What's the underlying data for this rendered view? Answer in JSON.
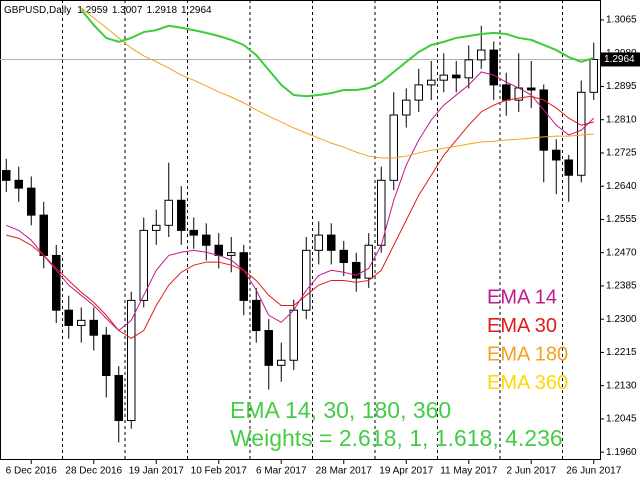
{
  "chart_data": {
    "type": "candlestick",
    "symbol": "GBPUSD,Daily",
    "ohlc": [
      1.2959,
      1.3007,
      1.2918,
      1.2964
    ],
    "price_line": 1.2964,
    "categories": [
      null,
      null,
      "6 Dec 2016",
      null,
      null,
      null,
      null,
      "28 Dec 2016",
      null,
      null,
      null,
      null,
      "19 Jan 2017",
      null,
      null,
      null,
      null,
      "10 Feb 2017",
      null,
      null,
      null,
      null,
      "6 Mar 2017",
      null,
      null,
      null,
      null,
      "28 Mar 2017",
      null,
      null,
      null,
      null,
      "19 Apr 2017",
      null,
      null,
      null,
      null,
      "11 May 2017",
      null,
      null,
      null,
      null,
      "2 Jun 2017",
      null,
      null,
      null,
      null,
      "26 Jun 2017"
    ],
    "candles": {
      "open": [
        1.268,
        1.2655,
        1.2635,
        1.2566,
        1.2463,
        1.2323,
        1.2284,
        1.2297,
        1.2259,
        1.2156,
        1.2041,
        1.2348,
        1.2527,
        1.254,
        1.2604,
        1.2527,
        1.2515,
        1.2489,
        1.2463,
        1.247,
        1.2348,
        1.2271,
        1.2182,
        1.2195,
        1.2323,
        1.2476,
        1.2515,
        1.2476,
        1.2445,
        1.2405,
        1.2489,
        1.2655,
        1.2822,
        1.286,
        1.2899,
        1.2911,
        1.2924,
        1.2917,
        1.2963,
        1.2988,
        1.2899,
        1.286,
        1.2891,
        1.2886,
        1.2732,
        1.2707,
        1.2668,
        1.288
      ],
      "high": [
        1.271,
        1.269,
        1.2665,
        1.26,
        1.249,
        1.236,
        1.233,
        1.233,
        1.228,
        1.218,
        1.237,
        1.256,
        1.258,
        1.27,
        1.264,
        1.256,
        1.2545,
        1.252,
        1.251,
        1.249,
        1.238,
        1.23,
        1.224,
        1.235,
        1.251,
        1.255,
        1.2545,
        1.25,
        1.247,
        1.252,
        1.269,
        1.288,
        1.289,
        1.294,
        1.296,
        1.298,
        1.296,
        1.3,
        1.305,
        1.301,
        1.293,
        1.298,
        1.296,
        1.29,
        1.276,
        1.272,
        1.291,
        1.3007
      ],
      "low": [
        1.2625,
        1.26,
        1.254,
        1.243,
        1.229,
        1.225,
        1.224,
        1.222,
        1.21,
        1.1985,
        1.202,
        1.233,
        1.249,
        1.251,
        1.249,
        1.248,
        1.245,
        1.243,
        1.242,
        1.231,
        1.224,
        1.212,
        1.214,
        1.217,
        1.23,
        1.244,
        1.244,
        1.241,
        1.237,
        1.238,
        1.247,
        1.263,
        1.279,
        1.283,
        1.286,
        1.288,
        1.288,
        1.289,
        1.294,
        1.286,
        1.282,
        1.283,
        1.284,
        1.265,
        1.262,
        1.26,
        1.265,
        1.286
      ],
      "close": [
        1.2655,
        1.2635,
        1.2566,
        1.2463,
        1.2323,
        1.2284,
        1.2297,
        1.2259,
        1.2156,
        1.2041,
        1.2348,
        1.2527,
        1.254,
        1.2604,
        1.2527,
        1.2515,
        1.2489,
        1.2463,
        1.247,
        1.2348,
        1.2271,
        1.2182,
        1.2195,
        1.2323,
        1.2476,
        1.2515,
        1.2476,
        1.2445,
        1.2405,
        1.2489,
        1.2655,
        1.2822,
        1.286,
        1.2899,
        1.2911,
        1.2924,
        1.2917,
        1.2963,
        1.2988,
        1.2899,
        1.286,
        1.2891,
        1.2886,
        1.2732,
        1.2707,
        1.2668,
        1.288,
        1.2964
      ]
    },
    "series": [
      {
        "name": "EMA 14",
        "color": "#c2188f",
        "values": [
          1.254,
          1.2527,
          1.2502,
          1.2463,
          1.2425,
          1.2387,
          1.2361,
          1.2335,
          1.2302,
          1.2271,
          1.2297,
          1.2361,
          1.2425,
          1.2463,
          1.2471,
          1.2476,
          1.2471,
          1.2463,
          1.2451,
          1.2425,
          1.2374,
          1.231,
          1.2292,
          1.2323,
          1.2374,
          1.2412,
          1.2425,
          1.242,
          1.2412,
          1.243,
          1.2489,
          1.2604,
          1.2694,
          1.2758,
          1.2809,
          1.2847,
          1.2873,
          1.2899,
          1.2932,
          1.2924,
          1.2906,
          1.2891,
          1.2873,
          1.2835,
          1.2796,
          1.2771,
          1.2783,
          1.2814
        ]
      },
      {
        "name": "EMA 30",
        "color": "#e01b1b",
        "values": [
          1.2515,
          1.2507,
          1.2489,
          1.2463,
          1.243,
          1.2399,
          1.2369,
          1.2343,
          1.231,
          1.2271,
          1.2251,
          1.2271,
          1.2335,
          1.2387,
          1.242,
          1.2438,
          1.2446,
          1.2446,
          1.2438,
          1.2425,
          1.2399,
          1.2361,
          1.2335,
          1.2335,
          1.2361,
          1.2387,
          1.2399,
          1.2399,
          1.2394,
          1.2399,
          1.2425,
          1.2489,
          1.2553,
          1.2617,
          1.2668,
          1.2719,
          1.2758,
          1.2796,
          1.283,
          1.2847,
          1.286,
          1.2865,
          1.287,
          1.286,
          1.284,
          1.2814,
          1.2796,
          1.2804
        ]
      },
      {
        "name": "EMA 180",
        "color": "#f5a01e",
        "values": [
          null,
          null,
          null,
          null,
          null,
          null,
          1.3096,
          1.307,
          1.3045,
          1.3019,
          1.2993,
          1.2973,
          1.2958,
          1.2942,
          1.2924,
          1.2911,
          1.2896,
          1.2881,
          1.2868,
          1.2853,
          1.2835,
          1.2819,
          1.2804,
          1.2789,
          1.2776,
          1.2763,
          1.275,
          1.274,
          1.2727,
          1.2717,
          1.2712,
          1.2712,
          1.2717,
          1.2725,
          1.2732,
          1.2737,
          1.2742,
          1.2748,
          1.2753,
          1.2755,
          1.2758,
          1.276,
          1.2763,
          1.2766,
          1.2768,
          1.2768,
          1.2771,
          1.2773
        ]
      },
      {
        "name": "EMA 360",
        "color": "#ffd700",
        "values": [
          null,
          null,
          null,
          null,
          null,
          null,
          null,
          null,
          null,
          null,
          null,
          null,
          null,
          null,
          null,
          null,
          null,
          null,
          null,
          null,
          null,
          null,
          null,
          null,
          null,
          null,
          null,
          null,
          null,
          null,
          null,
          null,
          null,
          null,
          null,
          null,
          null,
          null,
          null,
          null,
          null,
          null,
          null,
          null,
          null,
          null,
          null,
          null
        ]
      },
      {
        "color": "#3ccc3c",
        "values": [
          null,
          null,
          null,
          null,
          null,
          null,
          1.3091,
          1.3052,
          1.3019,
          1.3009,
          1.3019,
          1.3034,
          1.3039,
          1.305,
          1.3045,
          1.3039,
          1.3032,
          1.3024,
          1.3014,
          1.3001,
          1.2975,
          1.2937,
          1.2899,
          1.2873,
          1.287,
          1.2873,
          1.2878,
          1.2886,
          1.2886,
          1.2891,
          1.2906,
          1.2932,
          1.2958,
          1.2983,
          1.3001,
          1.3009,
          1.3019,
          1.3024,
          1.3029,
          1.3032,
          1.3029,
          1.3019,
          1.3014,
          1.3001,
          1.2988,
          1.297,
          1.2958,
          1.2968
        ]
      }
    ],
    "annotations": [
      "EMA 14, 30, 180, 360",
      "Weights = 2.618, 1, 1.618, 4.236"
    ],
    "annotation_color": "#44cc44",
    "ylim": [
      1.194,
      1.3116
    ],
    "yticks": [
      1.3065,
      {
        "value": 1.298,
        "label": "1.2980"
      },
      1.2895,
      {
        "value": 1.281,
        "label": "1.2810"
      },
      1.2725,
      {
        "value": 1.264,
        "label": "1.2640"
      },
      1.2555,
      {
        "value": 1.247,
        "label": "1.2470"
      },
      1.2385,
      {
        "value": 1.23,
        "label": "1.2300"
      },
      1.2215,
      {
        "value": 1.213,
        "label": "1.2130"
      },
      1.2045,
      {
        "value": 1.196,
        "label": "1.1960"
      }
    ]
  }
}
